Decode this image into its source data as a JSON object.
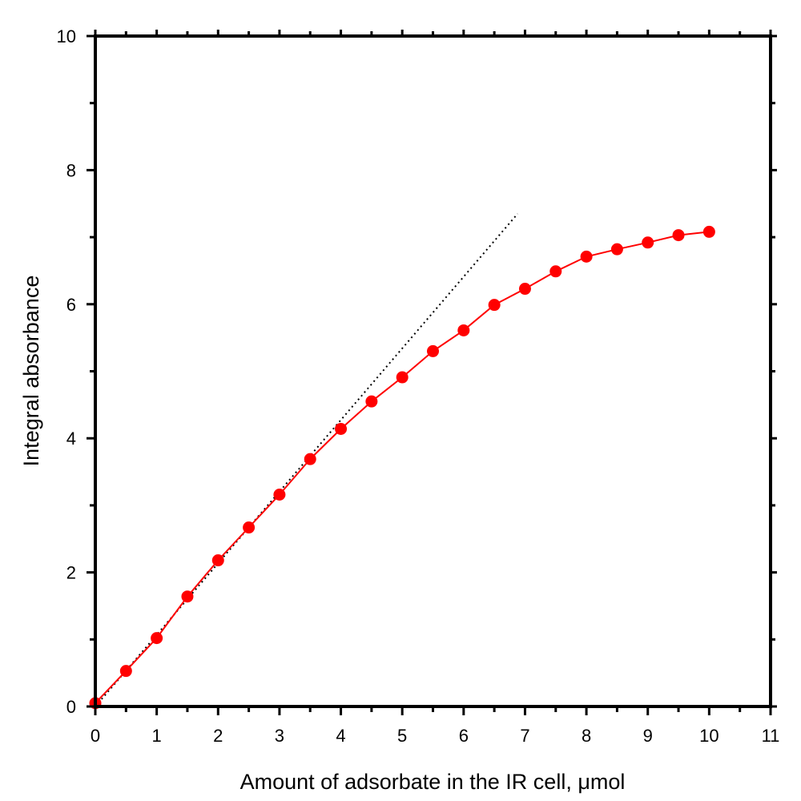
{
  "chart_data": {
    "type": "scatter",
    "title": "",
    "xlabel": "Amount of adsorbate in the IR cell, μmol",
    "ylabel": "Integral absorbance",
    "xlim": [
      0,
      11
    ],
    "ylim": [
      0,
      10
    ],
    "x_ticks": [
      0,
      1,
      2,
      3,
      4,
      5,
      6,
      7,
      8,
      9,
      10,
      11
    ],
    "y_ticks": [
      0,
      2,
      4,
      6,
      8,
      10
    ],
    "grid": false,
    "legend": "none",
    "series": [
      {
        "style": "markers+line",
        "color": "#ff0000",
        "x": [
          0,
          0.5,
          1,
          1.5,
          2,
          2.5,
          3,
          3.5,
          4,
          4.5,
          5,
          5.5,
          6,
          6.5,
          7,
          7.5,
          8,
          8.5,
          9,
          9.5,
          10
        ],
        "y": [
          0.05,
          0.53,
          1.02,
          1.64,
          2.18,
          2.67,
          3.16,
          3.69,
          4.14,
          4.55,
          4.91,
          5.3,
          5.61,
          5.99,
          6.23,
          6.49,
          6.71,
          6.82,
          6.92,
          7.03,
          7.08
        ]
      },
      {
        "style": "dotted-line",
        "color": "#000000",
        "x": [
          0,
          6.88
        ],
        "y": [
          0,
          7.35
        ]
      }
    ]
  }
}
